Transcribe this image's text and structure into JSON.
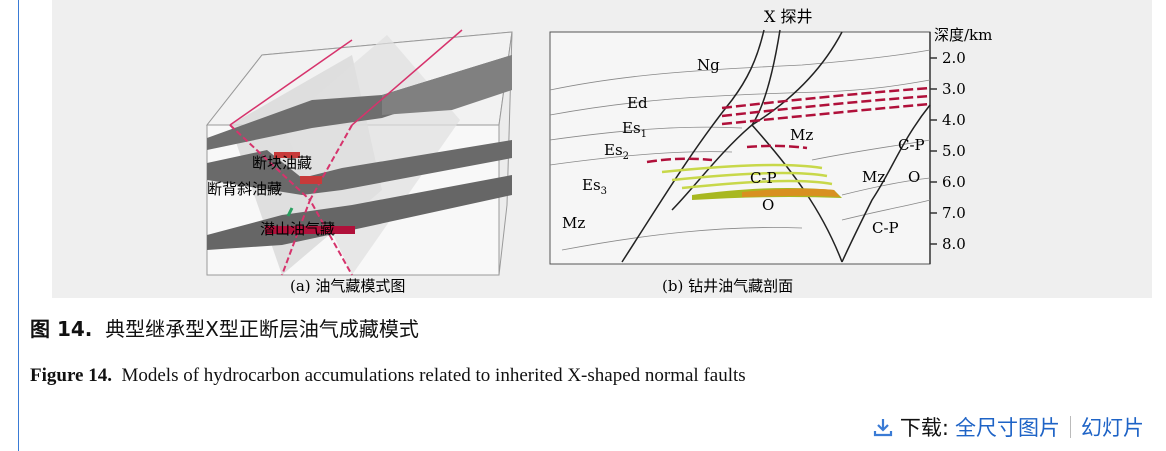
{
  "figure": {
    "panel_a": {
      "label_fault_block": "断块油藏",
      "label_faulted_anticline": "断背斜油藏",
      "label_buried_hill": "潜山油气藏",
      "caption": "(a) 油气藏模式图"
    },
    "panel_b": {
      "well_label": "X 探井",
      "depth_title": "深度/km",
      "depth_ticks": [
        "2.0",
        "3.0",
        "4.0",
        "5.0",
        "6.0",
        "7.0",
        "8.0"
      ],
      "strata": {
        "ng": "Ng",
        "ed": "Ed",
        "es1": "Es",
        "es1_sub": "1",
        "es2": "Es",
        "es2_sub": "2",
        "es3": "Es",
        "es3_sub": "3",
        "mz_left": "Mz",
        "mz_center": "Mz",
        "mz_right": "Mz",
        "cp_center": "C-P",
        "o_center": "O",
        "cp_right_upper": "C-P",
        "o_right": "O",
        "cp_right_lower": "C-P"
      },
      "caption": "(b) 钻井油气藏剖面"
    }
  },
  "caption_cn": {
    "label": "图 14.",
    "text": "典型继承型X型正断层油气成藏模式"
  },
  "caption_en": {
    "label": "Figure 14.",
    "text": "Models of hydrocarbon accumulations related to inherited X-shaped normal faults"
  },
  "download": {
    "label": "下载:",
    "full_size": "全尺寸图片",
    "slides": "幻灯片"
  },
  "colors": {
    "accent": "#1e63c6",
    "fault_red": "#d6336c",
    "oil_red": "#b0103a",
    "gas_yellow": "#c8d84a",
    "layer_gray": "#707070"
  }
}
